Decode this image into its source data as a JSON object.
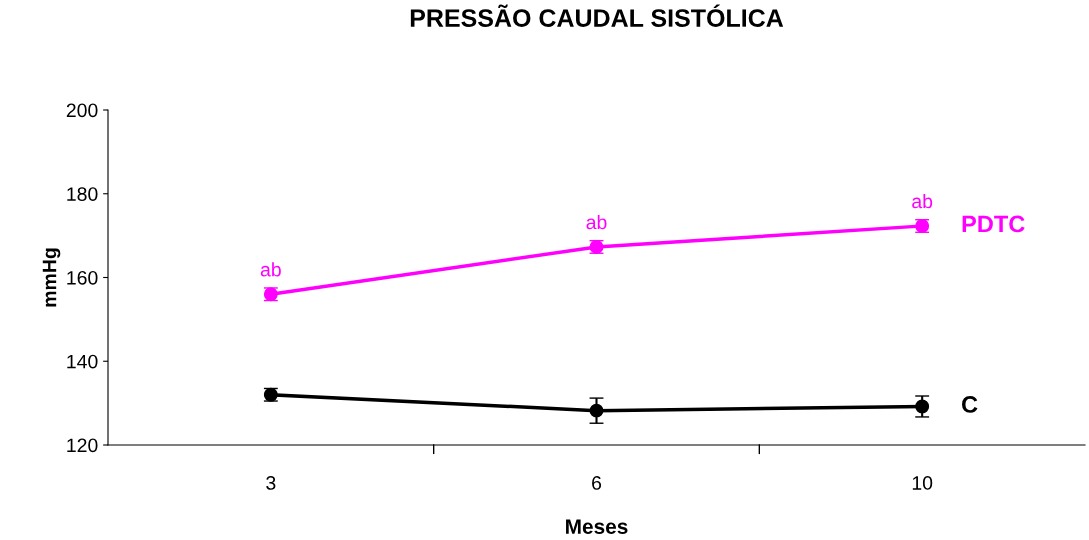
{
  "chart_data": {
    "type": "line",
    "title": "PRESSÃO CAUDAL SISTÓLICA",
    "xlabel": "Meses",
    "ylabel": "mmHg",
    "categories": [
      "3",
      "6",
      "10"
    ],
    "series": [
      {
        "name": "PDTC",
        "color": "#ff00ff",
        "values": [
          156,
          167.3,
          172.3
        ],
        "errors": [
          1.5,
          1.5,
          1.5
        ]
      },
      {
        "name": "C",
        "color": "#000000",
        "values": [
          132,
          128.2,
          129.2
        ],
        "errors": [
          1.5,
          3,
          2.5
        ]
      }
    ],
    "annotations": [
      {
        "text": "ab",
        "x": "3",
        "y": 156
      },
      {
        "text": "ab",
        "x": "6",
        "y": 167.3
      },
      {
        "text": "ab",
        "x": "10",
        "y": 172.3
      }
    ],
    "ylim": [
      120,
      200
    ],
    "yticks": [
      120,
      140,
      160,
      180,
      200
    ],
    "grid": false,
    "legend": false,
    "marker": "circle",
    "line_style": "solid"
  }
}
